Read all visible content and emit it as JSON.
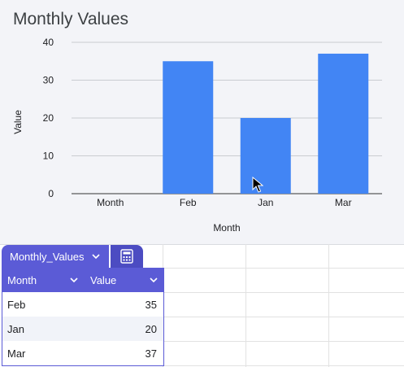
{
  "chart_data": {
    "type": "bar",
    "title": "Monthly Values",
    "xlabel": "Month",
    "ylabel": "Value",
    "categories": [
      "Month",
      "Feb",
      "Jan",
      "Mar"
    ],
    "values": [
      0,
      35,
      20,
      37
    ],
    "ylim": [
      0,
      40
    ],
    "yticks": [
      "0",
      "10",
      "20",
      "30",
      "40"
    ],
    "grid": true,
    "legend": "none",
    "bar_color": "#4285f4"
  },
  "table": {
    "name": "Monthly_Values",
    "columns": [
      "Month",
      "Value"
    ],
    "rows": [
      {
        "month": "Feb",
        "value": "35"
      },
      {
        "month": "Jan",
        "value": "20"
      },
      {
        "month": "Mar",
        "value": "37"
      }
    ],
    "header_color": "#5b5bd6"
  },
  "icons": {
    "tab_chevron": "chevron-down-icon",
    "calc": "calculator-icon",
    "cursor": "mouse-pointer-icon"
  }
}
